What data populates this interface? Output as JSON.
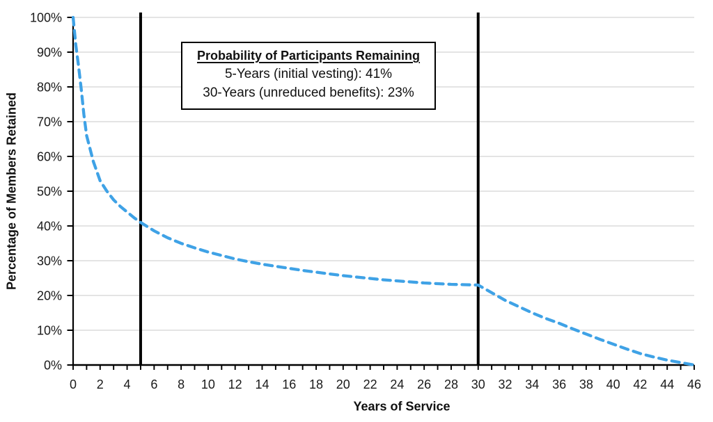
{
  "page": {
    "background": "#ffffff"
  },
  "chart_data": {
    "type": "line",
    "title": "",
    "xlabel": "Years of Service",
    "ylabel": "Percentage of Members Retained",
    "xlim": [
      0,
      46
    ],
    "ylim": [
      0,
      100
    ],
    "x_tick_label_step": 2,
    "x_tick_minor_step": 1,
    "y_tick_step": 10,
    "y_tick_suffix": "%",
    "grid": "horizontal-only",
    "legend_position": "none",
    "colors": {
      "curve": "#3fa2e6",
      "grid": "#dcdcdc",
      "axis": "#000000",
      "reference_line": "#000000",
      "text": "#1a1a1a"
    },
    "series": [
      {
        "name": "Percentage of Members Retained",
        "style": "dashed",
        "color": "#3fa2e6",
        "points": [
          [
            0,
            100
          ],
          [
            0.2,
            92
          ],
          [
            0.4,
            86
          ],
          [
            0.6,
            79.5
          ],
          [
            0.8,
            72
          ],
          [
            1,
            66
          ],
          [
            1.5,
            58.5
          ],
          [
            2,
            53
          ],
          [
            2.5,
            50
          ],
          [
            3,
            47.5
          ],
          [
            3.5,
            45.6
          ],
          [
            4,
            44
          ],
          [
            4.5,
            42.4
          ],
          [
            5,
            41
          ],
          [
            6,
            38.6
          ],
          [
            7,
            36.6
          ],
          [
            8,
            35
          ],
          [
            9,
            33.7
          ],
          [
            10,
            32.5
          ],
          [
            11,
            31.5
          ],
          [
            12,
            30.5
          ],
          [
            13,
            29.7
          ],
          [
            14,
            29
          ],
          [
            15,
            28.4
          ],
          [
            16,
            27.8
          ],
          [
            17,
            27.2
          ],
          [
            18,
            26.7
          ],
          [
            19,
            26.2
          ],
          [
            20,
            25.7
          ],
          [
            21,
            25.3
          ],
          [
            22,
            24.9
          ],
          [
            23,
            24.5
          ],
          [
            24,
            24.2
          ],
          [
            25,
            23.9
          ],
          [
            26,
            23.6
          ],
          [
            27,
            23.4
          ],
          [
            28,
            23.2
          ],
          [
            29,
            23.1
          ],
          [
            30,
            23
          ],
          [
            31,
            20.8
          ],
          [
            32,
            18.6
          ],
          [
            33,
            16.8
          ],
          [
            34,
            15
          ],
          [
            35,
            13.4
          ],
          [
            36,
            12
          ],
          [
            37,
            10.4
          ],
          [
            38,
            8.9
          ],
          [
            39,
            7.4
          ],
          [
            40,
            6
          ],
          [
            41,
            4.6
          ],
          [
            42,
            3.3
          ],
          [
            43,
            2.3
          ],
          [
            44,
            1.4
          ],
          [
            45,
            0.7
          ],
          [
            46,
            0
          ]
        ]
      }
    ],
    "reference_lines": [
      {
        "axis": "x",
        "value": 5
      },
      {
        "axis": "x",
        "value": 30
      }
    ],
    "annotation_box": {
      "title": "Probability of Participants Remaining",
      "lines": [
        "5-Years (initial vesting): 41%",
        "30-Years (unreduced benefits): 23%"
      ],
      "stats": {
        "five_year_initial_vesting_pct": 41,
        "thirty_year_unreduced_benefits_pct": 23
      }
    }
  }
}
